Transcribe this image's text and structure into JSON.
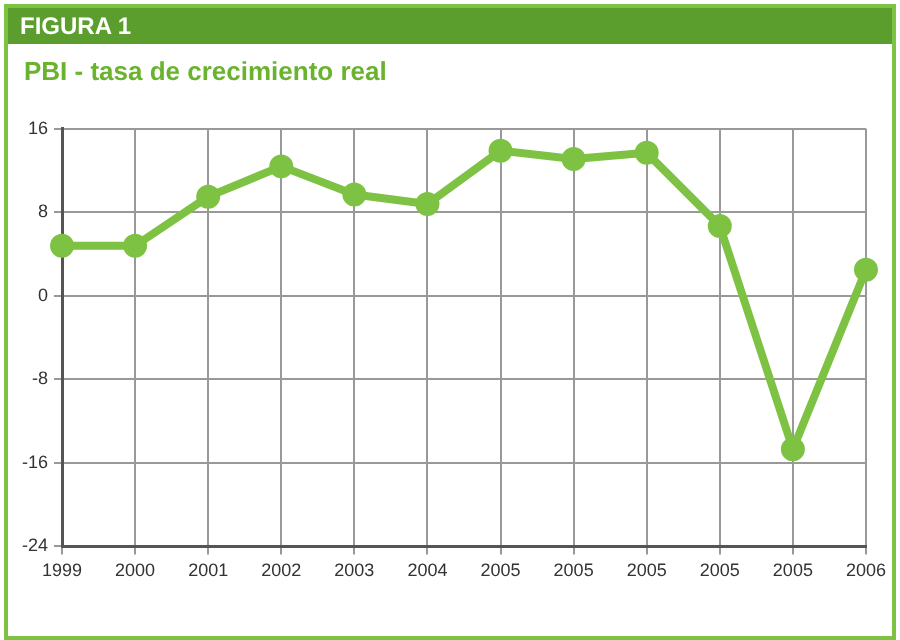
{
  "chart_data": {
    "type": "line",
    "title": "FIGURA 1",
    "subtitle": "PBI - tasa de crecimiento real",
    "categories": [
      "1999",
      "2000",
      "2001",
      "2002",
      "2003",
      "2004",
      "2005",
      "2005",
      "2005",
      "2005",
      "2005",
      "2006"
    ],
    "series": [
      {
        "color": "#7dc242",
        "values": [
          4.8,
          4.8,
          9.5,
          12.4,
          9.7,
          8.8,
          13.9,
          13.1,
          13.7,
          6.7,
          -14.7,
          2.5
        ]
      }
    ],
    "ylim": [
      -24,
      16
    ],
    "yticks": [
      -24,
      -16,
      -8,
      0,
      8,
      16
    ],
    "grid": true,
    "legend": false,
    "marker": "circle",
    "line_style": "solid"
  }
}
